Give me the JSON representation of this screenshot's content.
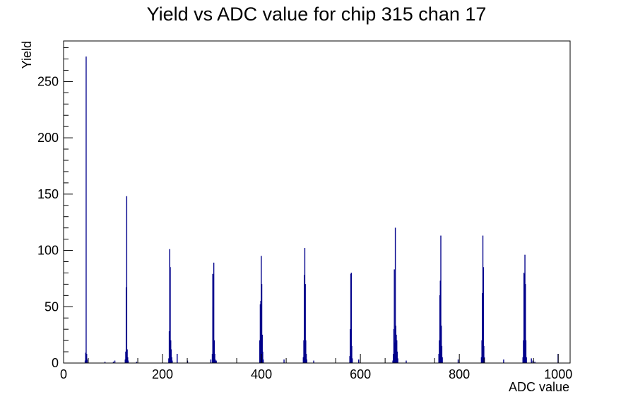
{
  "chart_data": {
    "type": "bar",
    "title": "Yield vs ADC value for chip 315 chan 17",
    "xlabel": "ADC value",
    "ylabel": "Yield",
    "xlim": [
      0,
      1024
    ],
    "ylim": [
      0,
      286
    ],
    "xticks": [
      0,
      200,
      400,
      600,
      800,
      1000
    ],
    "yticks": [
      0,
      50,
      100,
      150,
      200,
      250
    ],
    "grid": false,
    "legend": "none",
    "color": "#00008b",
    "bin_width": 1,
    "series": [
      {
        "x": [
          43,
          44,
          45,
          46,
          47,
          83,
          100,
          103,
          124,
          125,
          126,
          127,
          128,
          129,
          130,
          147,
          212,
          213,
          214,
          215,
          216,
          217,
          218,
          219,
          229,
          250,
          297,
          300,
          301,
          302,
          303,
          304,
          305,
          306,
          307,
          308,
          396,
          397,
          398,
          399,
          400,
          401,
          402,
          403,
          445,
          484,
          485,
          486,
          487,
          488,
          489,
          490,
          491,
          505,
          578,
          579,
          580,
          581,
          582,
          583,
          596,
          665,
          666,
          667,
          668,
          669,
          670,
          671,
          672,
          673,
          674,
          675,
          692,
          758,
          759,
          760,
          761,
          762,
          763,
          764,
          765,
          797,
          844,
          845,
          846,
          847,
          848,
          849,
          850,
          889,
          928,
          929,
          930,
          931,
          932,
          933,
          934,
          935,
          945,
          948,
          952,
          999
        ],
        "values": [
          2,
          9,
          272,
          8,
          3,
          1,
          1,
          2,
          3,
          10,
          67,
          148,
          12,
          5,
          2,
          1,
          4,
          28,
          101,
          85,
          20,
          12,
          5,
          2,
          8,
          2,
          3,
          8,
          79,
          50,
          89,
          20,
          8,
          3,
          1,
          2,
          20,
          52,
          55,
          95,
          70,
          25,
          10,
          3,
          3,
          5,
          20,
          78,
          102,
          70,
          20,
          8,
          3,
          2,
          6,
          30,
          79,
          80,
          15,
          4,
          3,
          2,
          8,
          30,
          83,
          18,
          120,
          33,
          25,
          20,
          10,
          4,
          2,
          8,
          20,
          60,
          73,
          113,
          33,
          15,
          5,
          3,
          5,
          20,
          62,
          113,
          85,
          15,
          5,
          3,
          5,
          20,
          80,
          79,
          96,
          70,
          20,
          5,
          4,
          2,
          1,
          8
        ]
      }
    ]
  }
}
